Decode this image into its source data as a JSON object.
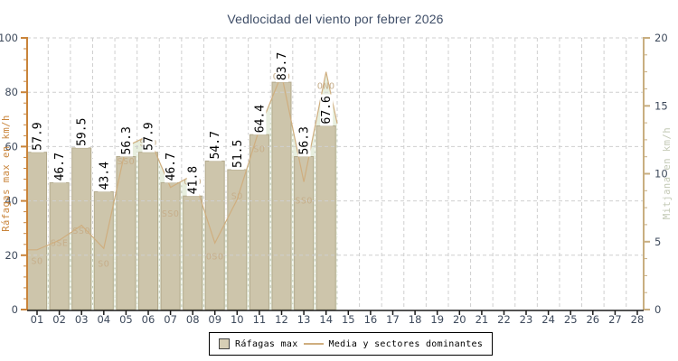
{
  "chart_data": {
    "type": "combo-bar-line",
    "title": "Vedlocidad del viento por febrer 2026",
    "categories": [
      "01",
      "02",
      "03",
      "04",
      "05",
      "06",
      "07",
      "08",
      "09",
      "10",
      "11",
      "12",
      "13",
      "14",
      "15",
      "16",
      "17",
      "18",
      "19",
      "20",
      "21",
      "22",
      "23",
      "24",
      "25",
      "26",
      "27",
      "28"
    ],
    "series": [
      {
        "name": "Ráfagas max",
        "type": "bar",
        "axis": "left",
        "unit": "km/h",
        "values": [
          57.9,
          46.7,
          59.5,
          43.4,
          56.3,
          57.9,
          46.7,
          41.8,
          54.7,
          51.5,
          64.4,
          83.7,
          56.3,
          67.6
        ]
      },
      {
        "name": "Media y sectores dominantes",
        "type": "line-area",
        "axis": "right",
        "unit": "km/h",
        "values": [
          4.4,
          5.1,
          6.2,
          4.5,
          12.0,
          12.8,
          9.0,
          9.9,
          4.9,
          8.1,
          13.3,
          17.3,
          9.4,
          17.5
        ],
        "edge_start": {
          "day": 0.55,
          "value": 4.4
        },
        "edge_end": {
          "day": 14.5,
          "value": 13.7
        }
      }
    ],
    "sector_labels": [
      {
        "day": 1,
        "label": "SO",
        "label_y_left_scale": 18.0
      },
      {
        "day": 2,
        "label": "SSE",
        "label_y_left_scale": 24.6
      },
      {
        "day": 3,
        "label": "SSO",
        "label_y_left_scale": 29.0
      },
      {
        "day": 4,
        "label": "SO",
        "label_y_left_scale": 17.0
      },
      {
        "day": 5,
        "label": "SSO",
        "label_y_left_scale": 54.6
      },
      {
        "day": 6,
        "label": "SSO",
        "label_y_left_scale": 61.5
      },
      {
        "day": 7,
        "label": "SSO",
        "label_y_left_scale": 35.3
      },
      {
        "day": 8,
        "label": "OSO",
        "label_y_left_scale": 47.2
      },
      {
        "day": 9,
        "label": "OSO",
        "label_y_left_scale": 19.6
      },
      {
        "day": 10,
        "label": "SO",
        "label_y_left_scale": 41.9
      },
      {
        "day": 11,
        "label": "SO",
        "label_y_left_scale": 59.2
      },
      {
        "day": 12,
        "label": "OSO",
        "label_y_left_scale": 85.8
      },
      {
        "day": 13,
        "label": "SSO",
        "label_y_left_scale": 40.2
      },
      {
        "day": 14,
        "label": "ONO",
        "label_y_left_scale": 82.4
      }
    ],
    "left_axis": {
      "title": "Ráfagas max en km/h",
      "min": 0,
      "max": 100,
      "major_ticks": [
        0,
        20,
        40,
        60,
        80,
        100
      ],
      "minor_step": 4
    },
    "right_axis": {
      "title": "Mitjana en km/h",
      "min": 0,
      "max": 20,
      "major_ticks": [
        0,
        5,
        10,
        15,
        20
      ],
      "minor_step": 1.25
    },
    "grid": "dashed",
    "legend_position": "bottom-center"
  },
  "colors": {
    "title": "#3d4c66",
    "tick_label": "#3e4a5c",
    "left_axis": "#c9843a",
    "right_axis_line": "#c8ae80",
    "right_axis_title": "#c3c9b5",
    "grid": "#cfcfcf",
    "white_grid": "#ffffff",
    "bar_fill": "#cdc5ab",
    "bar_border": "#b3aa8d",
    "media_line": "#cfae7f",
    "area_fill": "rgba(158,187,124,0.25)",
    "sector_label": "#c6ae8a",
    "bottom_axis": "#1a1a1a",
    "value_label": "#000000",
    "value_label_bg": "#ffffff",
    "legend_border": "#000000",
    "legend_swatch_fill": "#d6ceb5",
    "legend_swatch_border": "#444444",
    "background": "#ffffff"
  }
}
